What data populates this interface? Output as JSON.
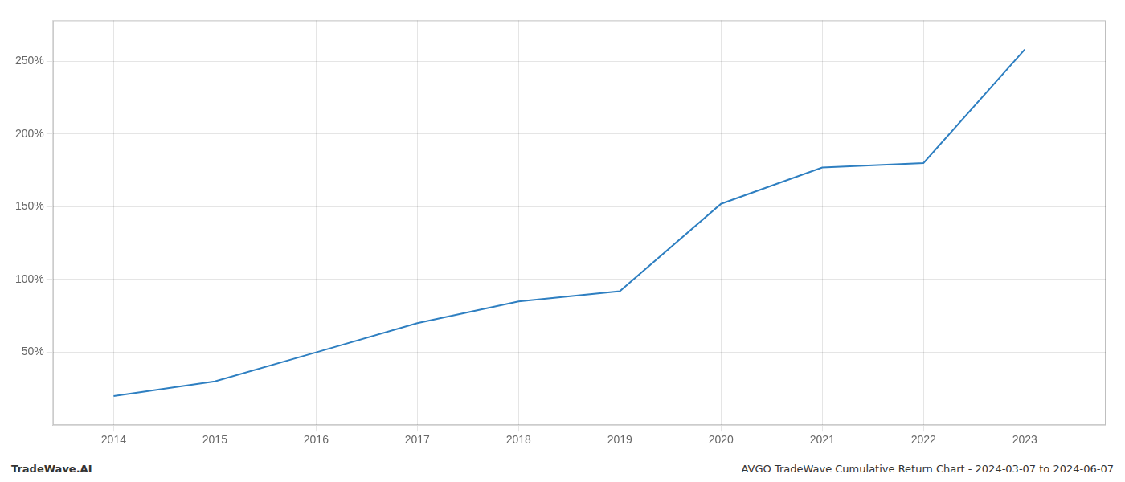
{
  "chart_data": {
    "type": "line",
    "x": [
      2014,
      2015,
      2016,
      2017,
      2018,
      2019,
      2020,
      2021,
      2022,
      2023
    ],
    "values": [
      20,
      30,
      50,
      70,
      85,
      92,
      152,
      177,
      180,
      258
    ],
    "color": "#2e7fc1",
    "xlim": [
      2013.4,
      2023.8
    ],
    "xticks": [
      2014,
      2015,
      2016,
      2017,
      2018,
      2019,
      2020,
      2021,
      2022,
      2023
    ],
    "ylim": [
      0,
      278
    ],
    "yticks": [
      {
        "value": 50,
        "label": "50%"
      },
      {
        "value": 100,
        "label": "100%"
      },
      {
        "value": 150,
        "label": "150%"
      },
      {
        "value": 200,
        "label": "200%"
      },
      {
        "value": 250,
        "label": "250%"
      }
    ],
    "grid": true,
    "annotations": [
      "TradeWave.AI",
      "AVGO TradeWave Cumulative Return Chart - 2024-03-07 to 2024-06-07"
    ]
  }
}
